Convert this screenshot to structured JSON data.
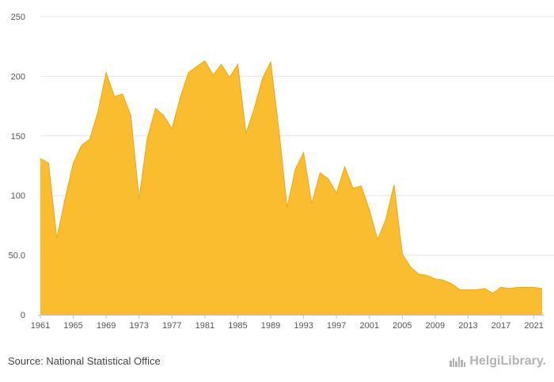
{
  "source_text": "Source: National Statistical Office",
  "logo_text": "HelgiLibrary.",
  "fill_color": "#f9bd2f",
  "stroke_color": "#e6a91c",
  "grid_color": "#e6e6e6",
  "chart_data": {
    "type": "area",
    "title": "",
    "xlabel": "",
    "ylabel": "",
    "ylim": [
      0,
      250
    ],
    "yticks": [
      0,
      50,
      100,
      150,
      200,
      250
    ],
    "ytick_labels": [
      "0",
      "50.0",
      "100",
      "150",
      "200",
      "250"
    ],
    "xticks": [
      1961,
      1965,
      1969,
      1973,
      1977,
      1981,
      1985,
      1989,
      1993,
      1997,
      2001,
      2005,
      2009,
      2013,
      2017,
      2021
    ],
    "grid": true,
    "legend": "none",
    "x": [
      1961,
      1962,
      1963,
      1964,
      1965,
      1966,
      1967,
      1968,
      1969,
      1970,
      1971,
      1972,
      1973,
      1974,
      1975,
      1976,
      1977,
      1978,
      1979,
      1980,
      1981,
      1982,
      1983,
      1984,
      1985,
      1986,
      1987,
      1988,
      1989,
      1990,
      1991,
      1992,
      1993,
      1994,
      1995,
      1996,
      1997,
      1998,
      1999,
      2000,
      2001,
      2002,
      2003,
      2004,
      2005,
      2006,
      2007,
      2008,
      2009,
      2010,
      2011,
      2012,
      2013,
      2014,
      2015,
      2016,
      2017,
      2018,
      2019,
      2020,
      2021,
      2022
    ],
    "values": [
      131,
      127,
      64,
      97,
      127,
      142,
      147,
      170,
      203,
      183,
      185,
      167,
      97,
      148,
      173,
      167,
      156,
      182,
      203,
      208,
      213,
      201,
      210,
      199,
      210,
      152,
      173,
      198,
      212,
      155,
      90,
      122,
      136,
      93,
      119,
      114,
      102,
      124,
      106,
      108,
      88,
      63,
      80,
      109,
      51,
      40,
      34,
      33,
      30,
      29,
      26,
      21,
      21,
      21,
      22,
      18,
      23,
      22,
      23,
      23,
      23,
      22
    ]
  }
}
